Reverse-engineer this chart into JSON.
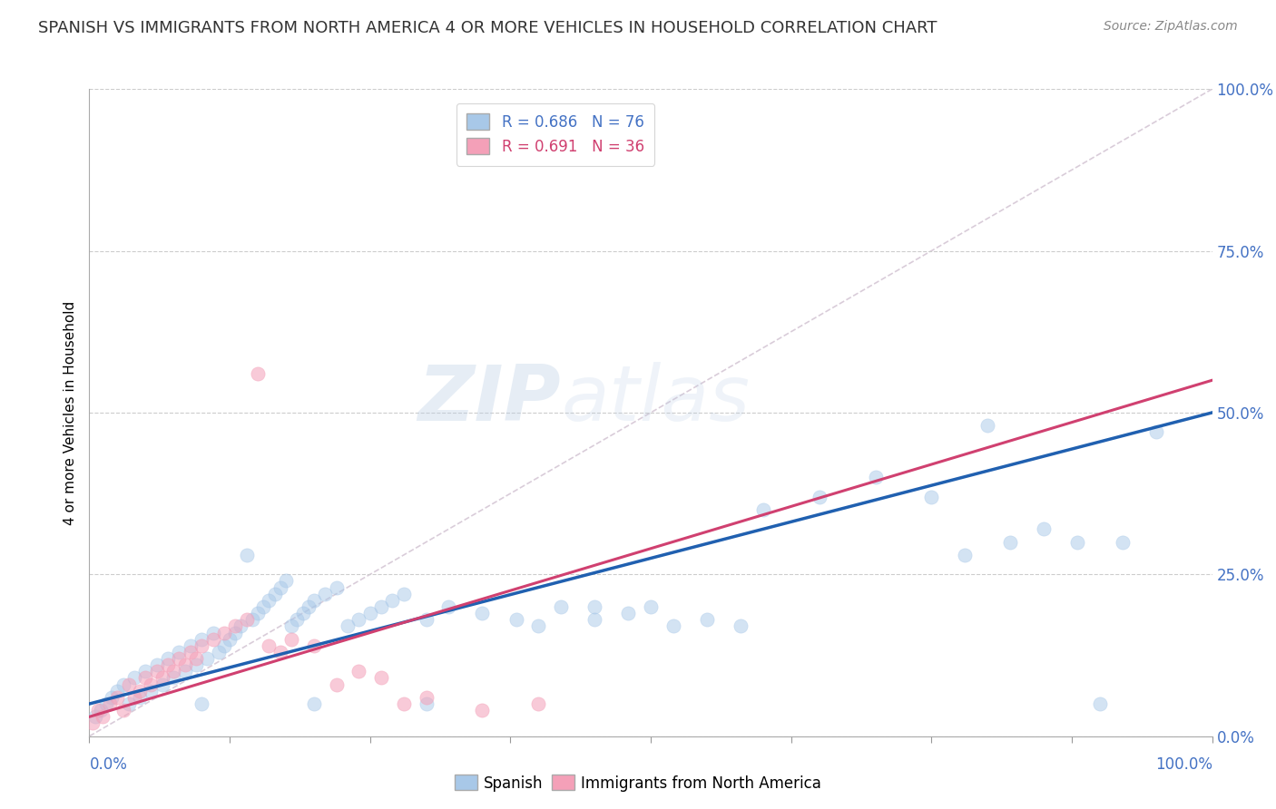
{
  "title": "SPANISH VS IMMIGRANTS FROM NORTH AMERICA 4 OR MORE VEHICLES IN HOUSEHOLD CORRELATION CHART",
  "source": "Source: ZipAtlas.com",
  "ylabel": "4 or more Vehicles in Household",
  "blue_r": "R = 0.686",
  "blue_n": "N = 76",
  "pink_r": "R = 0.691",
  "pink_n": "N = 36",
  "blue_color": "#a8c8e8",
  "pink_color": "#f4a0b8",
  "blue_line_color": "#2060b0",
  "pink_line_color": "#d04070",
  "diagonal_color": "#d0c0d0",
  "background_color": "#ffffff",
  "grid_color": "#cccccc",
  "watermark_zip": "ZIP",
  "watermark_atlas": "atlas",
  "tick_color": "#4472c4",
  "title_color": "#333333",
  "title_fontsize": 13,
  "ylabel_fontsize": 11,
  "tick_fontsize": 12,
  "source_fontsize": 10,
  "xlim": [
    0,
    100
  ],
  "ylim": [
    0,
    100
  ],
  "yticks": [
    0,
    25,
    50,
    75,
    100
  ],
  "blue_line_start_y": 5,
  "blue_line_end_y": 50,
  "pink_line_start_y": 3,
  "pink_line_end_y": 55,
  "blue_scatter_x": [
    0.5,
    1.0,
    1.5,
    2.0,
    2.5,
    3.0,
    3.5,
    4.0,
    4.5,
    5.0,
    5.5,
    6.0,
    6.5,
    7.0,
    7.5,
    8.0,
    8.5,
    9.0,
    9.5,
    10.0,
    10.5,
    11.0,
    11.5,
    12.0,
    12.5,
    13.0,
    13.5,
    14.0,
    14.5,
    15.0,
    15.5,
    16.0,
    16.5,
    17.0,
    17.5,
    18.0,
    18.5,
    19.0,
    19.5,
    20.0,
    21.0,
    22.0,
    23.0,
    24.0,
    25.0,
    26.0,
    27.0,
    28.0,
    30.0,
    32.0,
    35.0,
    38.0,
    40.0,
    42.0,
    45.0,
    48.0,
    50.0,
    52.0,
    55.0,
    58.0,
    60.0,
    65.0,
    70.0,
    75.0,
    78.0,
    80.0,
    82.0,
    85.0,
    88.0,
    90.0,
    92.0,
    95.0,
    10.0,
    20.0,
    30.0,
    45.0
  ],
  "blue_scatter_y": [
    3.0,
    4.0,
    5.0,
    6.0,
    7.0,
    8.0,
    5.0,
    9.0,
    6.0,
    10.0,
    7.0,
    11.0,
    8.0,
    12.0,
    9.0,
    13.0,
    10.0,
    14.0,
    11.0,
    15.0,
    12.0,
    16.0,
    13.0,
    14.0,
    15.0,
    16.0,
    17.0,
    28.0,
    18.0,
    19.0,
    20.0,
    21.0,
    22.0,
    23.0,
    24.0,
    17.0,
    18.0,
    19.0,
    20.0,
    21.0,
    22.0,
    23.0,
    17.0,
    18.0,
    19.0,
    20.0,
    21.0,
    22.0,
    18.0,
    20.0,
    19.0,
    18.0,
    17.0,
    20.0,
    18.0,
    19.0,
    20.0,
    17.0,
    18.0,
    17.0,
    35.0,
    37.0,
    40.0,
    37.0,
    28.0,
    48.0,
    30.0,
    32.0,
    30.0,
    5.0,
    30.0,
    47.0,
    5.0,
    5.0,
    5.0,
    20.0
  ],
  "pink_scatter_x": [
    0.3,
    0.8,
    1.2,
    1.8,
    2.5,
    3.0,
    3.5,
    4.0,
    4.5,
    5.0,
    5.5,
    6.0,
    6.5,
    7.0,
    7.5,
    8.0,
    8.5,
    9.0,
    9.5,
    10.0,
    11.0,
    12.0,
    13.0,
    14.0,
    15.0,
    16.0,
    17.0,
    18.0,
    20.0,
    22.0,
    24.0,
    26.0,
    28.0,
    30.0,
    35.0,
    40.0
  ],
  "pink_scatter_y": [
    2.0,
    4.0,
    3.0,
    5.0,
    6.0,
    4.0,
    8.0,
    6.0,
    7.0,
    9.0,
    8.0,
    10.0,
    9.0,
    11.0,
    10.0,
    12.0,
    11.0,
    13.0,
    12.0,
    14.0,
    15.0,
    16.0,
    17.0,
    18.0,
    56.0,
    14.0,
    13.0,
    15.0,
    14.0,
    8.0,
    10.0,
    9.0,
    5.0,
    6.0,
    4.0,
    5.0
  ]
}
